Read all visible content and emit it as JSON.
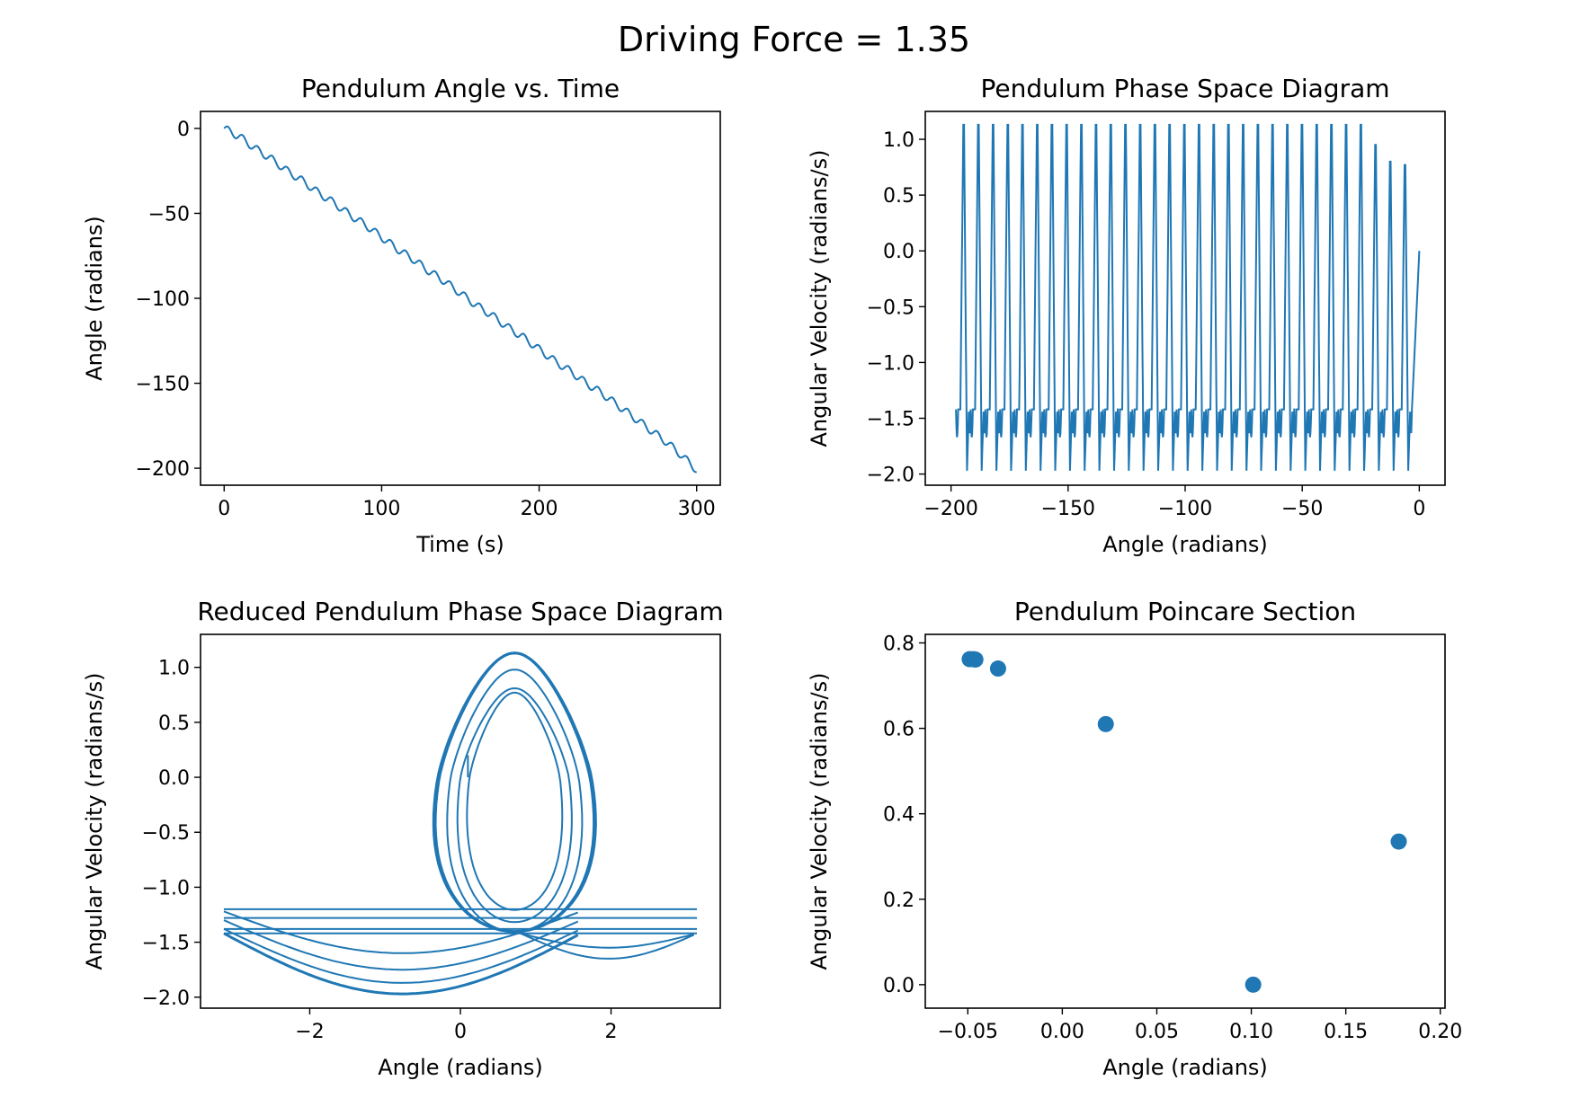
{
  "figure": {
    "suptitle": "Driving Force = 1.35"
  },
  "colors": {
    "series": "#1f77b4",
    "axes": "#000000",
    "background": "#ffffff"
  },
  "chart_data": [
    {
      "id": "angle_time",
      "type": "line",
      "title": "Pendulum Angle vs. Time",
      "xlabel": "Time (s)",
      "ylabel": "Angle (radians)",
      "xlim": [
        -15,
        315
      ],
      "ylim": [
        -210,
        10
      ],
      "xticks": [
        0,
        100,
        200,
        300
      ],
      "xtick_labels": [
        "0",
        "100",
        "200",
        "300"
      ],
      "yticks": [
        0,
        -50,
        -100,
        -150,
        -200
      ],
      "ytick_labels": [
        "0",
        "−50",
        "−100",
        "−150",
        "−200"
      ],
      "grid": false,
      "legend": "none",
      "series": [
        {
          "x": [
            0,
            10,
            20,
            30,
            40,
            50,
            60,
            70,
            80,
            90,
            100,
            110,
            120,
            130,
            140,
            150,
            160,
            170,
            180,
            190,
            200,
            210,
            220,
            230,
            240,
            250,
            260,
            270,
            280,
            290,
            300
          ],
          "y": [
            0,
            -5,
            -12,
            -18,
            -25,
            -31,
            -38,
            -44,
            -51,
            -57,
            -64,
            -71,
            -77,
            -84,
            -90,
            -97,
            -104,
            -110,
            -117,
            -123,
            -130,
            -137,
            -143,
            -150,
            -156,
            -163,
            -170,
            -177,
            -184,
            -192,
            -201
          ]
        }
      ]
    },
    {
      "id": "phase_space",
      "type": "line",
      "title": "Pendulum Phase Space Diagram",
      "xlabel": "Angle (radians)",
      "ylabel": "Angular Velocity (radians/s)",
      "xlim": [
        -211,
        11
      ],
      "ylim": [
        -2.1,
        1.25
      ],
      "xticks": [
        -200,
        -150,
        -100,
        -50,
        0
      ],
      "xtick_labels": [
        "−200",
        "−150",
        "−100",
        "−50",
        "0"
      ],
      "yticks": [
        1.0,
        0.5,
        0.0,
        -0.5,
        -1.0,
        -1.5,
        -2.0
      ],
      "ytick_labels": [
        "1.0",
        "0.5",
        "0.0",
        "−0.5",
        "−1.0",
        "−1.5",
        "−2.0"
      ],
      "grid": false,
      "legend": "none",
      "series": [
        {
          "description_points": "oscillation peaks",
          "x": [
            0,
            -1.5,
            -6.2,
            -12.5,
            -18.8,
            -25.1,
            -31.4,
            -37.7,
            -44.0,
            -50.3,
            -56.5,
            -62.8,
            -69.1,
            -75.4,
            -81.7,
            -88.0,
            -94.2,
            -100.5,
            -106.8,
            -113.1,
            -119.4,
            -125.7,
            -131.9,
            -138.2,
            -144.5,
            -150.8,
            -157.1,
            -163.4,
            -169.6,
            -175.9,
            -182.2,
            -188.5,
            -194.8,
            -200
          ],
          "y": [
            0,
            0.77,
            0.8,
            0.95,
            1.13,
            1.13,
            1.13,
            1.13,
            1.13,
            1.13,
            1.13,
            1.13,
            1.13,
            1.13,
            1.13,
            1.13,
            1.13,
            1.13,
            1.13,
            1.13,
            1.13,
            1.13,
            1.13,
            1.13,
            1.13,
            1.13,
            1.13,
            1.13,
            1.13,
            1.13,
            1.13,
            1.13,
            1.13,
            -1.42
          ]
        }
      ]
    },
    {
      "id": "reduced_phase",
      "type": "line",
      "title": "Reduced Pendulum Phase Space Diagram",
      "xlabel": "Angle (radians)",
      "ylabel": "Angular Velocity (radians/s)",
      "xlim": [
        -3.45,
        3.45
      ],
      "ylim": [
        -2.1,
        1.3
      ],
      "xticks": [
        -2,
        0,
        2
      ],
      "xtick_labels": [
        "−2",
        "0",
        "2"
      ],
      "yticks": [
        1.0,
        0.5,
        0.0,
        -0.5,
        -1.0,
        -1.5,
        -2.0
      ],
      "ytick_labels": [
        "1.0",
        "0.5",
        "0.0",
        "−0.5",
        "−1.0",
        "−1.5",
        "−2.0"
      ],
      "grid": false,
      "legend": "none",
      "series": [
        {
          "x": [
            0.1,
            0.3,
            0.7,
            1.0,
            0.5,
            -0.5,
            -1.5,
            -3.14,
            3.14,
            1.4,
            0.9,
            -0.4,
            -2.0,
            -3.14
          ],
          "y": [
            0.0,
            0.65,
            0.77,
            0.5,
            -0.6,
            -1.0,
            -1.3,
            -1.42,
            -1.42,
            -1.65,
            -1.55,
            -1.97,
            -1.8,
            -1.42
          ]
        }
      ]
    },
    {
      "id": "poincare",
      "type": "scatter",
      "title": "Pendulum Poincare Section",
      "xlabel": "Angle (radians)",
      "ylabel": "Angular Velocity (radians/s)",
      "xlim": [
        -0.0725,
        0.2025
      ],
      "ylim": [
        -0.055,
        0.82
      ],
      "xticks": [
        -0.05,
        0.0,
        0.05,
        0.1,
        0.15,
        0.2
      ],
      "xtick_labels": [
        "−0.05",
        "0.00",
        "0.05",
        "0.10",
        "0.15",
        "0.20"
      ],
      "yticks": [
        0.8,
        0.6,
        0.4,
        0.2,
        0.0
      ],
      "ytick_labels": [
        "0.8",
        "0.6",
        "0.4",
        "0.2",
        "0.0"
      ],
      "grid": false,
      "legend": "none",
      "series": [
        {
          "x": [
            -0.049,
            -0.047,
            -0.046,
            -0.034,
            0.023,
            0.101,
            0.178
          ],
          "y": [
            0.762,
            0.762,
            0.761,
            0.74,
            0.61,
            0.0,
            0.335
          ]
        }
      ]
    }
  ]
}
